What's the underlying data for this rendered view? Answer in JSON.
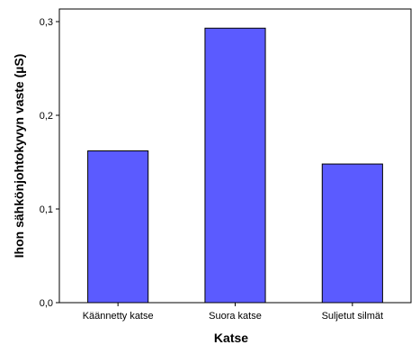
{
  "chart_data": {
    "type": "bar",
    "title": "",
    "xlabel": "Katse",
    "ylabel": "Ihon sähkönjohtokyvyn vaste (µS)",
    "categories": [
      "Käännetty katse",
      "Suora katse",
      "Suljetut silmät"
    ],
    "values": [
      0.162,
      0.293,
      0.148
    ],
    "ylim": [
      0,
      0.3
    ],
    "yticks": [
      0.0,
      0.1,
      0.2,
      0.3
    ],
    "ytick_labels": [
      "0,0",
      "0,1",
      "0,2",
      "0,3"
    ],
    "grid": false,
    "legend": "none",
    "bar_color": "#5b5bff",
    "bar_edge_color": "#000000"
  }
}
